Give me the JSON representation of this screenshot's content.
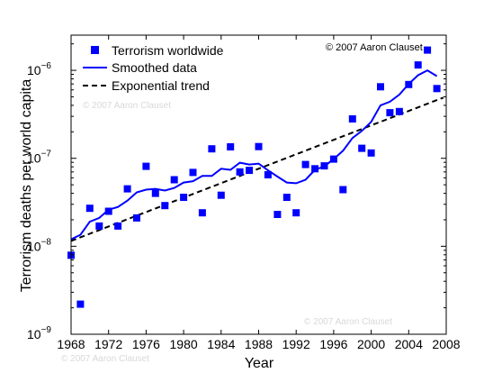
{
  "chart_data": {
    "type": "scatter",
    "xlabel": "Year",
    "ylabel": "Terrorism deaths per world capita",
    "xlim": [
      1968,
      2008
    ],
    "ylim_log10": [
      -9,
      -5.6
    ],
    "y_scale": "log",
    "grid": false,
    "legend_position": "top-left",
    "credit": "© 2007 Aaron Clauset",
    "watermarks": [
      "© 2007 Aaron Clauset",
      "© 2007 Aaron Clauset",
      "© 2007 Aaron Clauset"
    ],
    "xticks": [
      {
        "value": 1968,
        "label": "1968"
      },
      {
        "value": 1972,
        "label": "1972"
      },
      {
        "value": 1976,
        "label": "1976"
      },
      {
        "value": 1980,
        "label": "1980"
      },
      {
        "value": 1984,
        "label": "1984"
      },
      {
        "value": 1988,
        "label": "1988"
      },
      {
        "value": 1992,
        "label": "1992"
      },
      {
        "value": 1996,
        "label": "1996"
      },
      {
        "value": 2000,
        "label": "2000"
      },
      {
        "value": 2004,
        "label": "2004"
      },
      {
        "value": 2008,
        "label": "2008"
      }
    ],
    "yticks": [
      {
        "exp": -9,
        "base": "10",
        "sup": "−9"
      },
      {
        "exp": -8,
        "base": "10",
        "sup": "−8"
      },
      {
        "exp": -7,
        "base": "10",
        "sup": "−7"
      },
      {
        "exp": -6,
        "base": "10",
        "sup": "−6"
      }
    ],
    "series": [
      {
        "name": "Terrorism worldwide",
        "kind": "markers",
        "color": "#0000ff",
        "x": [
          1968,
          1969,
          1970,
          1971,
          1972,
          1973,
          1974,
          1975,
          1976,
          1977,
          1978,
          1979,
          1980,
          1981,
          1982,
          1983,
          1984,
          1985,
          1986,
          1987,
          1988,
          1989,
          1990,
          1991,
          1992,
          1993,
          1994,
          1995,
          1996,
          1997,
          1998,
          1999,
          2000,
          2001,
          2002,
          2003,
          2004,
          2005,
          2006,
          2007
        ],
        "y": [
          7.9e-09,
          2.2e-09,
          2.7e-08,
          1.7e-08,
          2.5e-08,
          1.7e-08,
          4.5e-08,
          2.1e-08,
          8.1e-08,
          4e-08,
          2.9e-08,
          5.7e-08,
          3.6e-08,
          6.9e-08,
          2.4e-08,
          1.28e-07,
          3.8e-08,
          1.35e-07,
          7e-08,
          7.3e-08,
          1.36e-07,
          6.5e-08,
          2.3e-08,
          3.6e-08,
          2.4e-08,
          8.5e-08,
          7.6e-08,
          8.2e-08,
          9.8e-08,
          4.4e-08,
          2.8e-07,
          1.3e-07,
          1.15e-07,
          6.5e-07,
          3.3e-07,
          3.4e-07,
          6.9e-07,
          1.15e-06,
          1.7e-06,
          6.2e-07
        ]
      },
      {
        "name": "Smoothed data",
        "kind": "line",
        "color": "#0000ff",
        "x": [
          1968,
          1969,
          1970,
          1971,
          1972,
          1973,
          1974,
          1975,
          1976,
          1977,
          1978,
          1979,
          1980,
          1981,
          1982,
          1983,
          1984,
          1985,
          1986,
          1987,
          1988,
          1989,
          1990,
          1991,
          1992,
          1993,
          1994,
          1995,
          1996,
          1997,
          1998,
          1999,
          2000,
          2001,
          2002,
          2003,
          2004,
          2005,
          2006,
          2007
        ],
        "y": [
          1.2e-08,
          1.35e-08,
          1.9e-08,
          2.1e-08,
          2.6e-08,
          2.8e-08,
          3.3e-08,
          4.1e-08,
          4.4e-08,
          4.5e-08,
          4.3e-08,
          4.6e-08,
          5.3e-08,
          5.5e-08,
          6.3e-08,
          6.3e-08,
          7.6e-08,
          7.4e-08,
          8.9e-08,
          8.5e-08,
          8.7e-08,
          7.3e-08,
          6.2e-08,
          5.3e-08,
          5.2e-08,
          5.7e-08,
          7.4e-08,
          8.1e-08,
          9.8e-08,
          1.22e-07,
          1.7e-07,
          2.05e-07,
          2.6e-07,
          4e-07,
          4.4e-07,
          5.3e-07,
          7e-07,
          8.8e-07,
          1e-06,
          8.6e-07
        ]
      },
      {
        "name": "Exponential trend",
        "kind": "dashed-line",
        "color": "#000000",
        "x": [
          1968,
          2007.7
        ],
        "y": [
          1.15e-08,
          4.9e-07
        ]
      }
    ]
  }
}
